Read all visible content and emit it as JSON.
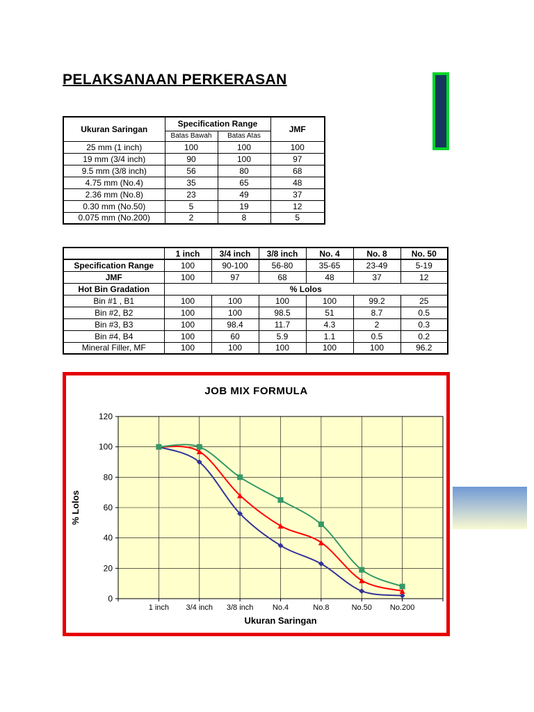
{
  "page": {
    "title": "PELAKSANAAN PERKERASAN"
  },
  "colors": {
    "chart_border": "#E60000",
    "flag_green": "#00D42A",
    "flag_navy": "#17365D",
    "gradient_top": "#7199D6",
    "gradient_bottom": "#FAFAD2",
    "plot_bg": "#FFFFCC"
  },
  "table1": {
    "header": {
      "ukuran_saringan": "Ukuran Saringan",
      "specification_range": "Specification Range",
      "batas_bawah": "Batas Bawah",
      "batas_atas": "Batas Atas",
      "jmf": "JMF"
    },
    "rows": [
      [
        "25 mm (1 inch)",
        "100",
        "100",
        "100"
      ],
      [
        "19 mm (3/4 inch)",
        "90",
        "100",
        "97"
      ],
      [
        "9.5 mm (3/8 inch)",
        "56",
        "80",
        "68"
      ],
      [
        "4.75 mm (No.4)",
        "35",
        "65",
        "48"
      ],
      [
        "2.36 mm (No.8)",
        "23",
        "49",
        "37"
      ],
      [
        "0.30 mm (No.50)",
        "5",
        "19",
        "12"
      ],
      [
        "0.075 mm (No.200)",
        "2",
        "8",
        "5"
      ]
    ]
  },
  "table2": {
    "columns": [
      "",
      "1 inch",
      "3/4 inch",
      "3/8 inch",
      "No. 4",
      "No. 8",
      "No. 50"
    ],
    "rows": [
      [
        "Specification Range",
        "100",
        "90-100",
        "56-80",
        "35-65",
        "23-49",
        "5-19"
      ],
      [
        "JMF",
        "100",
        "97",
        "68",
        "48",
        "37",
        "12"
      ],
      [
        "Bin #1 , B1",
        "100",
        "100",
        "100",
        "100",
        "99.2",
        "25"
      ],
      [
        "Bin #2, B2",
        "100",
        "100",
        "98.5",
        "51",
        "8.7",
        "0.5"
      ],
      [
        "Bin #3, B3",
        "100",
        "98.4",
        "11.7",
        "4.3",
        "2",
        "0.3"
      ],
      [
        "Bin #4, B4",
        "100",
        "60",
        "5.9",
        "1.1",
        "0.5",
        "0.2"
      ],
      [
        "Mineral Filler, MF",
        "100",
        "100",
        "100",
        "100",
        "100",
        "96.2"
      ]
    ],
    "hot_bin_row": {
      "label": "Hot Bin Gradation",
      "value": "% Lolos"
    }
  },
  "chart_data": {
    "type": "line",
    "title": "JOB MIX FORMULA",
    "xlabel": "Ukuran Saringan",
    "ylabel": "% Lolos",
    "categories": [
      "1 inch",
      "3/4 inch",
      "3/8 inch",
      "No.4",
      "No.8",
      "No.50",
      "No.200"
    ],
    "series": [
      {
        "name": "Batas Bawah",
        "marker": "diamond",
        "color": "#333399",
        "values": [
          100,
          90,
          56,
          35,
          23,
          5,
          2
        ]
      },
      {
        "name": "JMF",
        "marker": "triangle",
        "color": "#FF0000",
        "values": [
          100,
          97,
          68,
          48,
          37,
          12,
          5
        ]
      },
      {
        "name": "Batas Atas",
        "marker": "square",
        "color": "#339966",
        "values": [
          100,
          100,
          80,
          65,
          49,
          19,
          8
        ]
      }
    ],
    "ylim": [
      0,
      120
    ],
    "yticks": [
      0,
      20,
      40,
      60,
      80,
      100,
      120
    ],
    "plot_bg": "#FFFFCC",
    "grid": true,
    "legend": "none"
  }
}
